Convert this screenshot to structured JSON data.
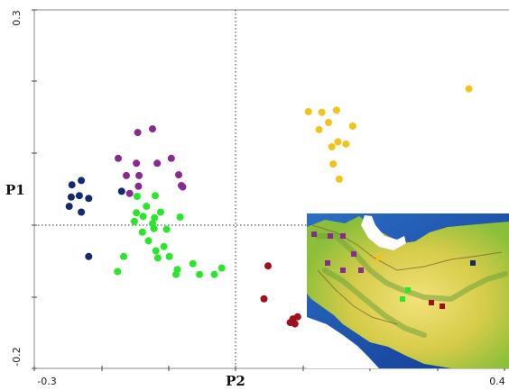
{
  "chart_data": {
    "type": "scatter",
    "title": "",
    "xlabel": "P2",
    "ylabel": "P1",
    "xlim": [
      -0.3,
      0.4
    ],
    "ylim": [
      -0.2,
      0.3
    ],
    "x_tick_labels": [
      "-0.3",
      "0.4"
    ],
    "y_tick_labels": [
      "0.3",
      "-0.2"
    ],
    "grid": false,
    "reference_lines": {
      "x": -0.0,
      "y": 0.0
    },
    "legend": "none",
    "inset": "map of Iran with colored sampling locations",
    "series": [
      {
        "color": "#15296e",
        "points": [
          [
            -0.244,
            0.056
          ],
          [
            -0.23,
            0.062
          ],
          [
            -0.245,
            0.039
          ],
          [
            -0.233,
            0.041
          ],
          [
            -0.219,
            0.037
          ],
          [
            -0.248,
            0.026
          ],
          [
            -0.23,
            0.018
          ],
          [
            -0.219,
            -0.044
          ],
          [
            -0.17,
            0.047
          ]
        ]
      },
      {
        "color": "#8a2a90",
        "points": [
          [
            -0.124,
            0.134
          ],
          [
            -0.146,
            0.129
          ],
          [
            -0.175,
            0.093
          ],
          [
            -0.148,
            0.086
          ],
          [
            -0.144,
            0.069
          ],
          [
            -0.117,
            0.086
          ],
          [
            -0.096,
            0.093
          ],
          [
            -0.145,
            0.054
          ],
          [
            -0.163,
            0.069
          ],
          [
            -0.085,
            0.07
          ],
          [
            -0.081,
            0.055
          ],
          [
            -0.079,
            0.053
          ],
          [
            -0.158,
            0.044
          ]
        ]
      },
      {
        "color": "#29e62a",
        "points": [
          [
            -0.147,
            0.04
          ],
          [
            -0.12,
            0.041
          ],
          [
            -0.133,
            0.026
          ],
          [
            -0.148,
            0.017
          ],
          [
            -0.124,
            0.002
          ],
          [
            -0.151,
            0.005
          ],
          [
            -0.138,
            0.012
          ],
          [
            -0.112,
            0.018
          ],
          [
            -0.121,
            0.01
          ],
          [
            -0.122,
            -0.005
          ],
          [
            -0.139,
            -0.01
          ],
          [
            -0.103,
            -0.006
          ],
          [
            -0.107,
            -0.03
          ],
          [
            -0.13,
            -0.022
          ],
          [
            -0.116,
            -0.046
          ],
          [
            -0.089,
            -0.069
          ],
          [
            -0.099,
            -0.044
          ],
          [
            -0.167,
            -0.044
          ],
          [
            -0.176,
            -0.065
          ],
          [
            -0.087,
            -0.062
          ],
          [
            -0.064,
            -0.054
          ],
          [
            -0.054,
            -0.069
          ],
          [
            -0.032,
            -0.069
          ],
          [
            -0.021,
            -0.06
          ],
          [
            -0.083,
            0.011
          ],
          [
            -0.119,
            -0.036
          ]
        ]
      },
      {
        "color": "#a00f1c",
        "points": [
          [
            0.048,
            -0.057
          ],
          [
            0.042,
            -0.103
          ],
          [
            0.085,
            -0.131
          ],
          [
            0.092,
            -0.128
          ],
          [
            0.088,
            -0.138
          ],
          [
            0.081,
            -0.136
          ]
        ]
      },
      {
        "color": "#f4c21c",
        "points": [
          [
            0.108,
            0.158
          ],
          [
            0.128,
            0.157
          ],
          [
            0.15,
            0.16
          ],
          [
            0.138,
            0.143
          ],
          [
            0.152,
            0.116
          ],
          [
            0.124,
            0.133
          ],
          [
            0.174,
            0.138
          ],
          [
            0.164,
            0.113
          ],
          [
            0.143,
            0.109
          ],
          [
            0.145,
            0.085
          ],
          [
            0.154,
            0.064
          ],
          [
            0.162,
            0.01
          ],
          [
            0.347,
            0.19
          ]
        ]
      }
    ]
  },
  "inset_sites": [
    {
      "color": "#8a2a90"
    },
    {
      "color": "#8a2a90"
    },
    {
      "color": "#8a2a90"
    },
    {
      "color": "#8a2a90"
    },
    {
      "color": "#8a2a90"
    },
    {
      "color": "#8a2a90"
    },
    {
      "color": "#8a2a90"
    },
    {
      "color": "#15296e"
    },
    {
      "color": "#29e62a"
    },
    {
      "color": "#29e62a"
    },
    {
      "color": "#a00f1c"
    },
    {
      "color": "#a00f1c"
    },
    {
      "color": "#f4c21c"
    }
  ]
}
